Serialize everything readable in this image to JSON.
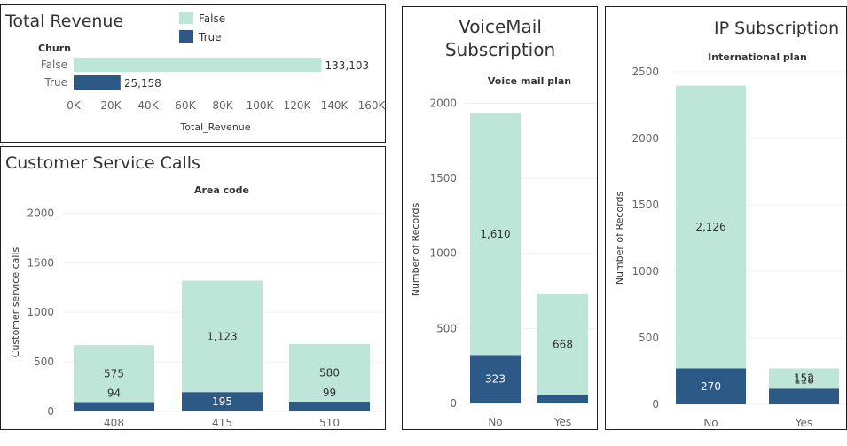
{
  "colors": {
    "false": "#bde5d8",
    "true": "#2d5986"
  },
  "legend": {
    "false_label": "False",
    "true_label": "True"
  },
  "chart_data": [
    {
      "id": "revenue",
      "type": "bar",
      "orientation": "horizontal",
      "title": "Total Revenue",
      "row_header": "Churn",
      "xlabel": "Total_Revenue",
      "categories": [
        "False",
        "True"
      ],
      "values": [
        133103,
        25158
      ],
      "value_labels": [
        "133,103",
        "25,158"
      ],
      "xlim": [
        0,
        160000
      ],
      "ticks": [
        0,
        20000,
        40000,
        60000,
        80000,
        100000,
        120000,
        140000,
        160000
      ],
      "tick_labels": [
        "0K",
        "20K",
        "40K",
        "60K",
        "80K",
        "100K",
        "120K",
        "140K",
        "160K"
      ]
    },
    {
      "id": "calls",
      "type": "bar",
      "stacked": true,
      "title": "Customer Service Calls",
      "header": "Area code",
      "ylabel": "Customer service calls",
      "categories": [
        "408",
        "415",
        "510"
      ],
      "series": [
        {
          "name": "True",
          "values": [
            94,
            195,
            99
          ]
        },
        {
          "name": "False",
          "values": [
            575,
            1123,
            580
          ]
        }
      ],
      "ylim": [
        0,
        2200
      ],
      "ticks": [
        0,
        500,
        1000,
        1500,
        2000
      ]
    },
    {
      "id": "voicemail",
      "type": "bar",
      "stacked": true,
      "title_lines": [
        "VoiceMail",
        "Subscription"
      ],
      "header": "Voice mail plan",
      "ylabel": "Number of Records",
      "categories": [
        "No",
        "Yes"
      ],
      "series": [
        {
          "name": "True",
          "values": [
            323,
            60
          ]
        },
        {
          "name": "False",
          "values": [
            1610,
            668
          ]
        }
      ],
      "hide_labels": {
        "True": [
          false,
          true
        ],
        "False": [
          false,
          false
        ]
      },
      "ylim": [
        0,
        2050
      ],
      "ticks": [
        0,
        500,
        1000,
        1500,
        2000
      ]
    },
    {
      "id": "ip",
      "type": "bar",
      "stacked": true,
      "title": "IP Subscription",
      "header": "International plan",
      "ylabel": "Number of Records",
      "categories": [
        "No",
        "Yes"
      ],
      "series": [
        {
          "name": "True",
          "values": [
            270,
            118
          ]
        },
        {
          "name": "False",
          "values": [
            2126,
            152
          ]
        }
      ],
      "ylim": [
        0,
        2500
      ],
      "ticks": [
        0,
        500,
        1000,
        1500,
        2000,
        2500
      ]
    }
  ]
}
